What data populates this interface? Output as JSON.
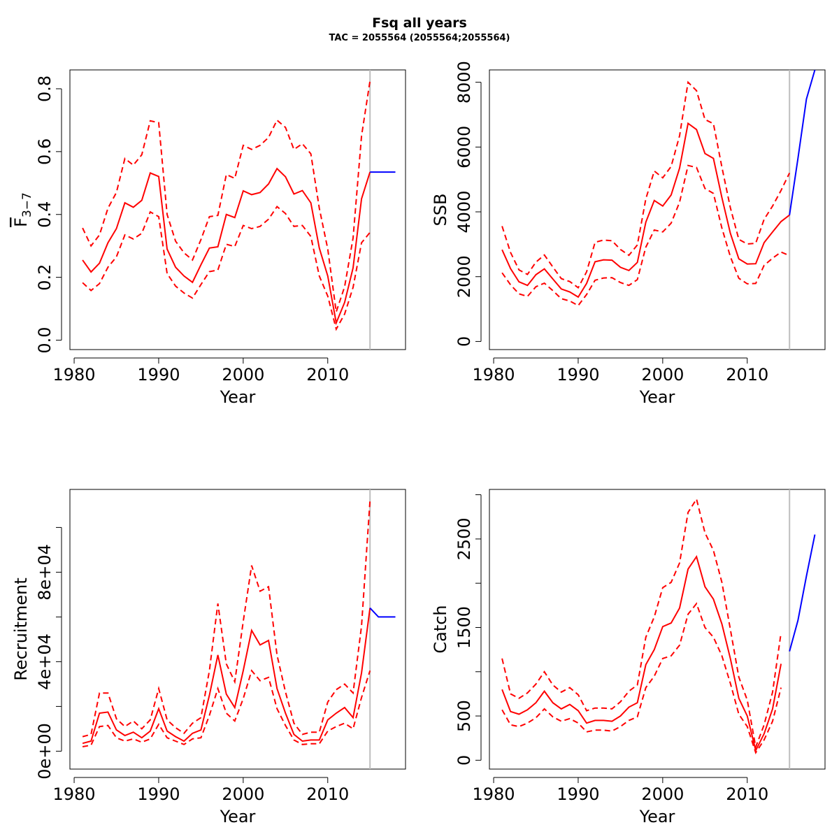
{
  "title": "Fsq all years",
  "subtitle": "TAC = 2055564 (2055564;2055564)",
  "colors": {
    "estimate": "#ff0000",
    "forecast": "#0000ff",
    "divider": "#bebebe"
  },
  "chart_data": [
    {
      "type": "line",
      "xlabel": "Year",
      "ylabel": "F",
      "ylabel_subscript": "3−7",
      "xlim": [
        1979.5,
        2019.2
      ],
      "ylim": [
        -0.03,
        0.86
      ],
      "xticks": [
        1980,
        1990,
        2000,
        2010
      ],
      "yticks": [
        0,
        0.2,
        0.4,
        0.6,
        0.8
      ],
      "ytick_labels": [
        "0.0",
        "0.2",
        "0.4",
        "0.6",
        "0.8"
      ],
      "divider_x": 2015,
      "x": [
        1981,
        1982,
        1983,
        1984,
        1985,
        1986,
        1987,
        1988,
        1989,
        1990,
        1991,
        1992,
        1993,
        1994,
        1995,
        1996,
        1997,
        1998,
        1999,
        2000,
        2001,
        2002,
        2003,
        2004,
        2005,
        2006,
        2007,
        2008,
        2009,
        2010,
        2011,
        2012,
        2013,
        2014,
        2015
      ],
      "estimate": [
        0.255,
        0.217,
        0.245,
        0.31,
        0.355,
        0.437,
        0.423,
        0.445,
        0.532,
        0.521,
        0.29,
        0.232,
        0.204,
        0.184,
        0.24,
        0.293,
        0.297,
        0.4,
        0.39,
        0.475,
        0.463,
        0.47,
        0.497,
        0.546,
        0.52,
        0.465,
        0.476,
        0.437,
        0.293,
        0.204,
        0.055,
        0.12,
        0.23,
        0.45,
        0.535
      ],
      "upper": [
        0.357,
        0.3,
        0.335,
        0.42,
        0.47,
        0.578,
        0.557,
        0.59,
        0.698,
        0.692,
        0.4,
        0.315,
        0.278,
        0.255,
        0.32,
        0.393,
        0.397,
        0.527,
        0.515,
        0.62,
        0.607,
        0.62,
        0.645,
        0.7,
        0.677,
        0.607,
        0.625,
        0.593,
        0.42,
        0.29,
        0.09,
        0.17,
        0.325,
        0.65,
        0.825
      ],
      "lower": [
        0.183,
        0.158,
        0.18,
        0.232,
        0.265,
        0.335,
        0.322,
        0.34,
        0.408,
        0.393,
        0.212,
        0.172,
        0.15,
        0.134,
        0.177,
        0.218,
        0.223,
        0.305,
        0.298,
        0.365,
        0.355,
        0.362,
        0.385,
        0.425,
        0.403,
        0.362,
        0.365,
        0.33,
        0.204,
        0.14,
        0.035,
        0.083,
        0.168,
        0.31,
        0.343
      ],
      "forecast": {
        "x": [
          2015,
          2016,
          2017,
          2018
        ],
        "y": [
          0.535,
          0.535,
          0.535,
          0.535
        ]
      }
    },
    {
      "type": "line",
      "xlabel": "Year",
      "ylabel": "SSB",
      "xlim": [
        1979.5,
        2019.2
      ],
      "ylim": [
        -250,
        8380
      ],
      "xticks": [
        1980,
        1990,
        2000,
        2010
      ],
      "yticks": [
        0,
        2000,
        4000,
        6000,
        8000
      ],
      "ytick_labels": [
        "0",
        "2000",
        "4000",
        "6000",
        "8000"
      ],
      "divider_x": 2015,
      "x": [
        1981,
        1982,
        1983,
        1984,
        1985,
        1986,
        1987,
        1988,
        1989,
        1990,
        1991,
        1992,
        1993,
        1994,
        1995,
        1996,
        1997,
        1998,
        1999,
        2000,
        2001,
        2002,
        2003,
        2004,
        2005,
        2006,
        2007,
        2008,
        2009,
        2010,
        2011,
        2012,
        2013,
        2014,
        2015
      ],
      "estimate": [
        2830,
        2250,
        1840,
        1730,
        2060,
        2240,
        1930,
        1620,
        1530,
        1370,
        1790,
        2460,
        2520,
        2510,
        2290,
        2190,
        2440,
        3680,
        4350,
        4180,
        4520,
        5350,
        6730,
        6540,
        5800,
        5650,
        4440,
        3340,
        2550,
        2390,
        2400,
        3050,
        3380,
        3700,
        3900
      ],
      "upper": [
        3560,
        2750,
        2210,
        2070,
        2450,
        2670,
        2300,
        1940,
        1850,
        1660,
        2150,
        3060,
        3130,
        3110,
        2840,
        2660,
        2980,
        4400,
        5260,
        5050,
        5400,
        6350,
        8000,
        7740,
        6850,
        6720,
        5380,
        4130,
        3150,
        3010,
        3030,
        3770,
        4180,
        4660,
        5200
      ],
      "lower": [
        2120,
        1750,
        1470,
        1390,
        1690,
        1800,
        1570,
        1320,
        1250,
        1110,
        1450,
        1890,
        1960,
        1970,
        1820,
        1730,
        1910,
        2910,
        3440,
        3380,
        3650,
        4300,
        5430,
        5370,
        4720,
        4570,
        3500,
        2620,
        1950,
        1780,
        1790,
        2350,
        2570,
        2760,
        2650
      ],
      "forecast": {
        "x": [
          2015,
          2016,
          2017,
          2018
        ],
        "y": [
          3900,
          5650,
          7480,
          8380
        ]
      }
    },
    {
      "type": "line",
      "xlabel": "Year",
      "ylabel": "Recruitment",
      "xlim": [
        1979.5,
        2019.2
      ],
      "ylim": [
        -8000,
        117000
      ],
      "xticks": [
        1980,
        1990,
        2000,
        2010
      ],
      "yticks": [
        0,
        40000,
        80000
      ],
      "yticks_minor": [
        20000,
        60000,
        100000
      ],
      "ytick_labels": [
        "0e+00",
        "4e+04",
        "8e+04"
      ],
      "divider_x": 2015,
      "x": [
        1981,
        1982,
        1983,
        1984,
        1985,
        1986,
        1987,
        1988,
        1989,
        1990,
        1991,
        1992,
        1993,
        1994,
        1995,
        1996,
        1997,
        1998,
        1999,
        2000,
        2001,
        2002,
        2003,
        2004,
        2005,
        2006,
        2007,
        2008,
        2009,
        2010,
        2011,
        2012,
        2013,
        2014,
        2015
      ],
      "estimate": [
        3500,
        4500,
        17000,
        17500,
        9500,
        7000,
        8500,
        6000,
        9000,
        19000,
        9000,
        6500,
        4500,
        8000,
        9500,
        25000,
        43000,
        25500,
        19500,
        36000,
        54000,
        47500,
        49500,
        28000,
        17000,
        7500,
        4500,
        5000,
        5000,
        14000,
        17000,
        19500,
        15000,
        35000,
        64000
      ],
      "upper": [
        6500,
        7500,
        26000,
        26000,
        14500,
        11000,
        13500,
        10000,
        14000,
        28000,
        14000,
        10500,
        8000,
        12500,
        15000,
        36000,
        66000,
        39000,
        31000,
        58000,
        83000,
        71500,
        73500,
        43000,
        26500,
        12500,
        7500,
        8500,
        8500,
        22000,
        27500,
        30000,
        26000,
        56000,
        112000
      ],
      "lower": [
        2000,
        2700,
        11000,
        11500,
        6000,
        4500,
        5500,
        4000,
        5500,
        12000,
        6000,
        4500,
        3000,
        5500,
        6000,
        16000,
        28000,
        17000,
        13500,
        23500,
        36000,
        31500,
        33000,
        19000,
        11500,
        5000,
        3000,
        3300,
        3300,
        9000,
        11000,
        12500,
        10000,
        24000,
        36000
      ],
      "forecast": {
        "x": [
          2015,
          2016,
          2017,
          2018
        ],
        "y": [
          64000,
          60000,
          60000,
          60000
        ]
      }
    },
    {
      "type": "line",
      "xlabel": "Year",
      "ylabel": "Catch",
      "xlim": [
        1979.5,
        2019.2
      ],
      "ylim": [
        -100,
        3060
      ],
      "xticks": [
        1980,
        1990,
        2000,
        2010
      ],
      "yticks": [
        0,
        500,
        1500,
        2500
      ],
      "yticks_minor": [
        1000,
        2000,
        3000
      ],
      "ytick_labels": [
        "0",
        "500",
        "1500",
        "2500"
      ],
      "divider_x": 2015,
      "x": [
        1981,
        1982,
        1983,
        1984,
        1985,
        1986,
        1987,
        1988,
        1989,
        1990,
        1991,
        1992,
        1993,
        1994,
        1995,
        1996,
        1997,
        1998,
        1999,
        2000,
        2001,
        2002,
        2003,
        2004,
        2005,
        2006,
        2007,
        2008,
        2009,
        2010,
        2011,
        2012,
        2013,
        2014
      ],
      "estimate": [
        800,
        550,
        520,
        570,
        650,
        780,
        650,
        580,
        630,
        560,
        420,
        450,
        450,
        440,
        500,
        600,
        650,
        1080,
        1250,
        1510,
        1550,
        1720,
        2160,
        2300,
        1960,
        1820,
        1540,
        1150,
        700,
        500,
        110,
        300,
        580,
        1090
      ],
      "upper": [
        1150,
        750,
        700,
        760,
        860,
        1000,
        850,
        770,
        820,
        740,
        560,
        590,
        590,
        580,
        660,
        780,
        850,
        1390,
        1620,
        1950,
        2010,
        2230,
        2800,
        2950,
        2570,
        2370,
        2010,
        1480,
        940,
        680,
        150,
        400,
        770,
        1440
      ],
      "lower": [
        570,
        400,
        380,
        420,
        480,
        580,
        490,
        440,
        470,
        420,
        320,
        340,
        340,
        330,
        380,
        450,
        490,
        820,
        950,
        1150,
        1180,
        1300,
        1650,
        1770,
        1500,
        1390,
        1180,
        870,
        520,
        380,
        85,
        230,
        440,
        820
      ],
      "forecast": {
        "x": [
          2015,
          2016,
          2017,
          2018
        ],
        "y": [
          1230,
          1580,
          2080,
          2550
        ]
      }
    }
  ]
}
